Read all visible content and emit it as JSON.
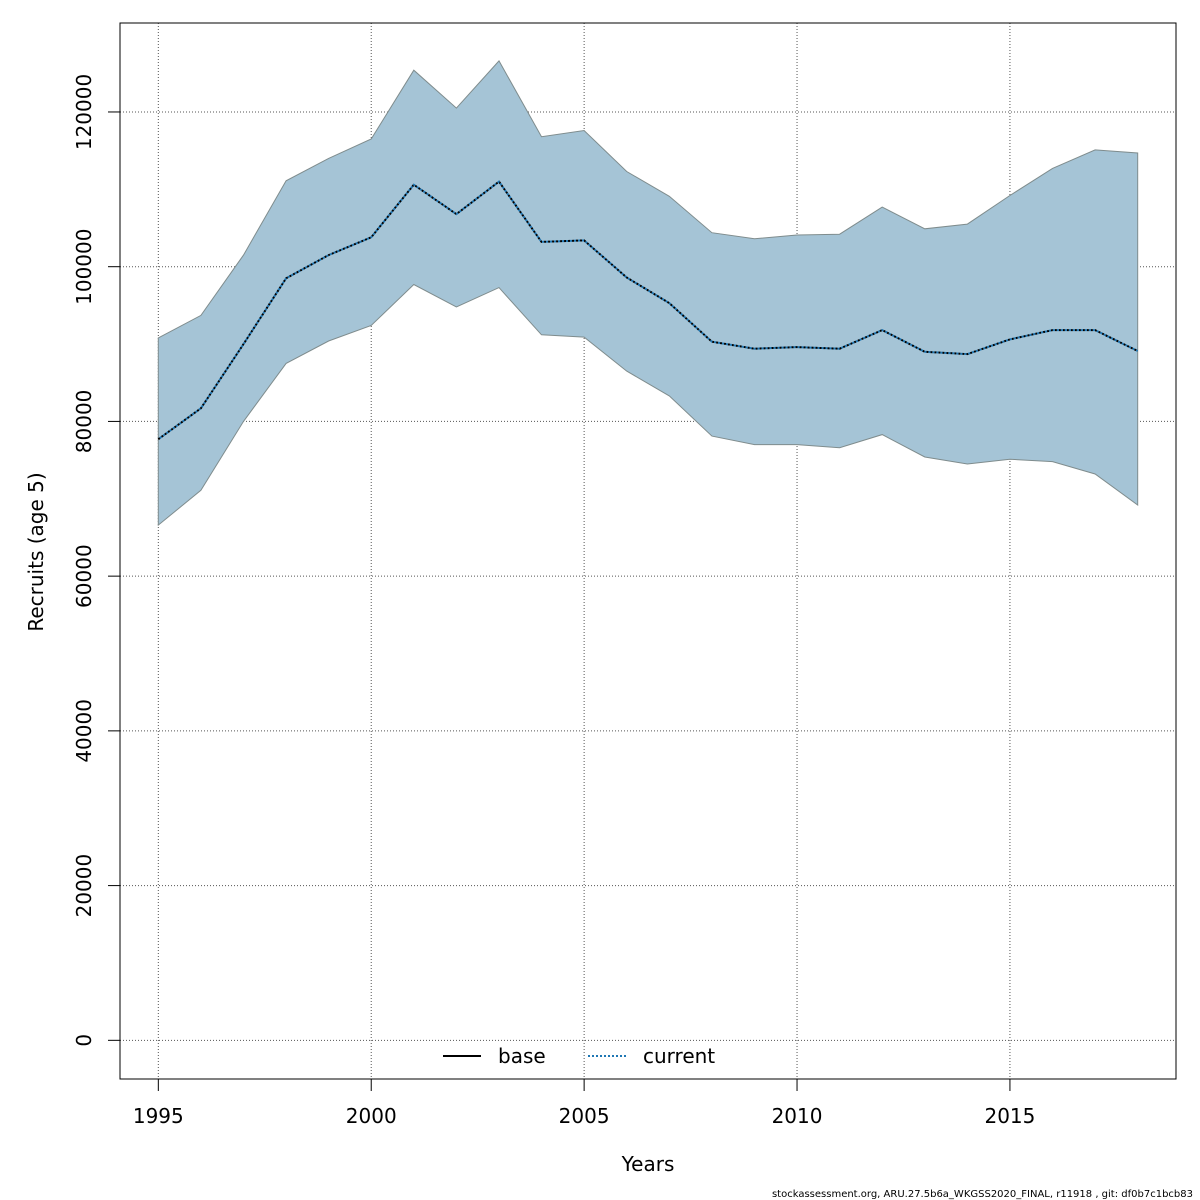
{
  "chart_data": {
    "type": "line",
    "xlabel": "Years",
    "ylabel": "Recruits (age 5)",
    "xlim": [
      1994.1,
      2018.9
    ],
    "ylim": [
      -5000,
      131500
    ],
    "x_ticks": [
      1995,
      2000,
      2005,
      2010,
      2015
    ],
    "y_ticks": [
      0,
      20000,
      40000,
      60000,
      80000,
      100000,
      120000
    ],
    "grid": true,
    "legend_position": "bottom-center",
    "years": [
      1995,
      1996,
      1997,
      1998,
      1999,
      2000,
      2001,
      2002,
      2003,
      2004,
      2005,
      2006,
      2007,
      2008,
      2009,
      2010,
      2011,
      2012,
      2013,
      2014,
      2015,
      2016,
      2017,
      2018
    ],
    "series": [
      {
        "name": "base",
        "style": "solid",
        "color": "#000000",
        "values": [
          77700,
          81700,
          90000,
          98500,
          101500,
          103800,
          110600,
          106800,
          111000,
          103200,
          103400,
          98600,
          95300,
          90300,
          89400,
          89600,
          89400,
          91800,
          89000,
          88700,
          90600,
          91800,
          91800,
          89100
        ]
      },
      {
        "name": "current",
        "style": "dotted",
        "color": "#1f77b4",
        "values": [
          77700,
          81700,
          90000,
          98500,
          101500,
          103800,
          110600,
          106800,
          111000,
          103200,
          103400,
          98600,
          95300,
          90300,
          89400,
          89600,
          89400,
          91800,
          89000,
          88700,
          90600,
          91800,
          91800,
          89100
        ]
      }
    ],
    "confidence_band": {
      "color": "#a5c4d6",
      "edge_color": "#7f8c8d",
      "lower": [
        66600,
        71100,
        80000,
        87500,
        90400,
        92400,
        97700,
        94800,
        97300,
        91200,
        90900,
        86500,
        83300,
        78100,
        77000,
        77000,
        76600,
        78300,
        75400,
        74500,
        75100,
        74800,
        73200,
        69200
      ],
      "upper": [
        90800,
        93700,
        101500,
        111100,
        114000,
        116500,
        125400,
        120500,
        126600,
        116800,
        117600,
        112300,
        109100,
        104400,
        103600,
        104100,
        104200,
        107700,
        104900,
        105500,
        109200,
        112700,
        115100,
        114700
      ]
    },
    "footer": "stockassessment.org, ARU.27.5b6a_WKGSS2020_FINAL, r11918 , git: df0b7c1bcb83"
  }
}
